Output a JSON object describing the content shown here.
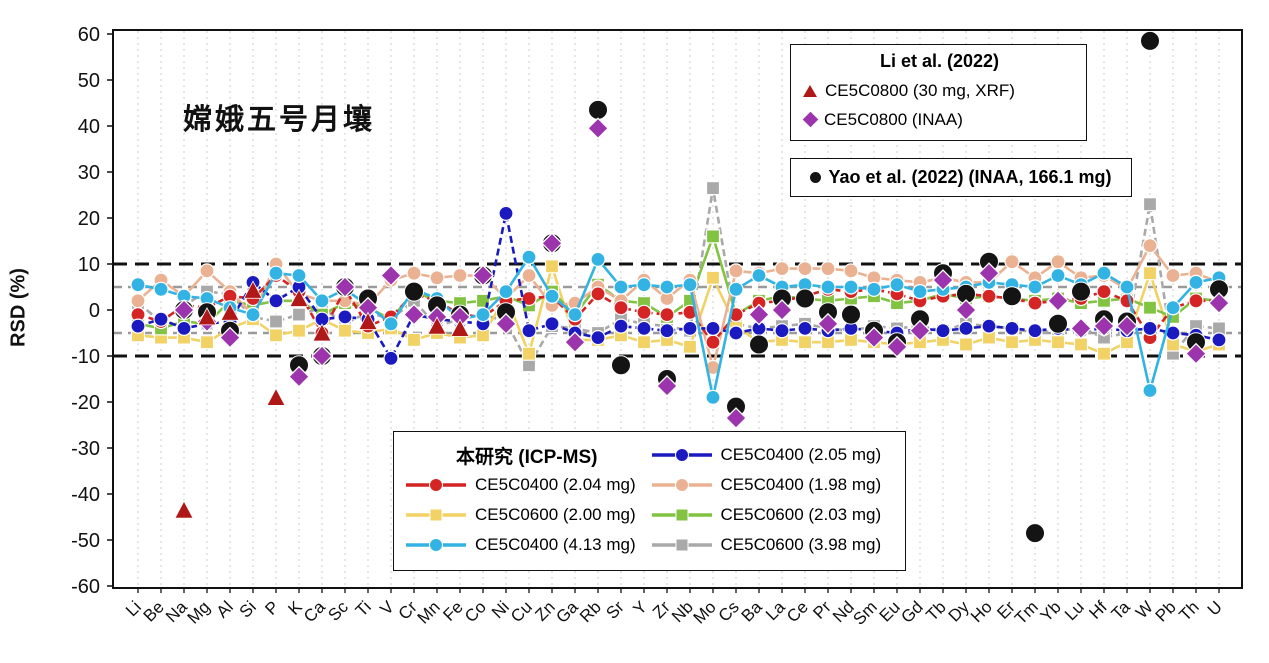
{
  "title": "嫦娥五号月壤",
  "chart_data": {
    "type": "line",
    "ylabel": "RSD (%)",
    "ylim": [
      -60,
      60
    ],
    "yticks": [
      60,
      50,
      40,
      30,
      20,
      10,
      0,
      -10,
      -20,
      -30,
      -40,
      -50,
      -60
    ],
    "grid": "vertical-dashed",
    "ref_lines": [
      {
        "value": 10,
        "color": "#111111",
        "width": 3,
        "dash": "14 8"
      },
      {
        "value": -10,
        "color": "#111111",
        "width": 3,
        "dash": "14 8"
      },
      {
        "value": 5,
        "color": "#9a9a9a",
        "width": 2.4,
        "dash": "9 6"
      },
      {
        "value": -5,
        "color": "#9a9a9a",
        "width": 2.4,
        "dash": "9 6"
      }
    ],
    "categories": [
      "Li",
      "Be",
      "Na",
      "Mg",
      "Al",
      "Si",
      "P",
      "K",
      "Ca",
      "Sc",
      "Ti",
      "V",
      "Cr",
      "Mn",
      "Fe",
      "Co",
      "Ni",
      "Cu",
      "Zn",
      "Ga",
      "Rb",
      "Sr",
      "Y",
      "Zr",
      "Nb",
      "Mo",
      "Cs",
      "Ba",
      "La",
      "Ce",
      "Pr",
      "Nd",
      "Sm",
      "Eu",
      "Gd",
      "Tb",
      "Dy",
      "Ho",
      "Er",
      "Tm",
      "Yb",
      "Lu",
      "Hf",
      "Ta",
      "W",
      "Pb",
      "Th",
      "U"
    ],
    "series": [
      {
        "name": "CE5C0600 (3.98 mg)",
        "group": "this-study",
        "marker": "square",
        "color": "#a9a9a9",
        "dash": "7 4",
        "values": [
          1.5,
          -2.5,
          1,
          4,
          3.5,
          -1.5,
          -2.5,
          -1,
          0.5,
          -3,
          -0.5,
          -2,
          2,
          -3.5,
          -2,
          -1,
          -2.5,
          -12,
          -3.5,
          -4,
          -5,
          -2,
          -3,
          -3.5,
          -4.5,
          26.5,
          -3,
          -4,
          -3.5,
          -3,
          -4,
          -4.5,
          -3.5,
          -4,
          -3.5,
          -4.5,
          -3,
          -3.5,
          -4,
          -5,
          -4.5,
          -4,
          -6,
          -5,
          23,
          -9.5,
          -3.5,
          -4
        ]
      },
      {
        "name": "CE5C0600 (2.00 mg)",
        "group": "this-study",
        "marker": "square",
        "color": "#f2d264",
        "dash": "",
        "values": [
          -5.5,
          -6,
          -6,
          -7,
          -4,
          -2,
          -5.5,
          -4.5,
          -2,
          -4.5,
          -5,
          -4,
          -6.5,
          -5,
          -6,
          -5.5,
          3,
          -9.5,
          9.5,
          -6.5,
          -6.5,
          -5.5,
          -7,
          -6.5,
          -8,
          7,
          -3.5,
          -7,
          -6.5,
          -7,
          -7,
          -6.5,
          -7,
          -7.5,
          -7,
          -6.5,
          -7.5,
          -6,
          -7,
          -6.5,
          -7,
          -7.5,
          -9.5,
          -7,
          8,
          -7.5,
          -9,
          -7.5
        ]
      },
      {
        "name": "CE5C0600 (2.03 mg)",
        "group": "this-study",
        "marker": "square",
        "color": "#82c341",
        "dash": "",
        "values": [
          -3,
          -4,
          -2.5,
          -3,
          2,
          1,
          2,
          2,
          -1,
          1.5,
          0.5,
          -2,
          4,
          2,
          1.5,
          2,
          3,
          1,
          4,
          -1,
          5.5,
          2,
          1.5,
          -1.5,
          2,
          16,
          -1,
          2,
          3,
          2.5,
          2,
          2.5,
          3,
          1.5,
          2,
          3.5,
          2.5,
          3,
          2.5,
          2,
          2.5,
          1.5,
          2,
          2.5,
          0.5,
          -1.5,
          2.5,
          2
        ]
      },
      {
        "name": "CE5C0400 (1.98 mg)",
        "group": "this-study",
        "marker": "circle",
        "color": "#eab292",
        "dash": "",
        "values": [
          2,
          6.5,
          3,
          8.5,
          4,
          -1,
          10,
          3.5,
          2,
          2,
          1,
          6.5,
          8,
          7,
          7.5,
          7.5,
          2.5,
          7.5,
          1,
          1.5,
          5,
          2,
          6.5,
          2.5,
          6.5,
          -12.5,
          8.5,
          8,
          9,
          9,
          9,
          8.5,
          7,
          6.5,
          6,
          7,
          6,
          6,
          10.5,
          7,
          10.5,
          7,
          7.5,
          4.5,
          14,
          7.5,
          8,
          6
        ]
      },
      {
        "name": "CE5C0400 (2.04 mg)",
        "group": "this-study",
        "marker": "circle",
        "color": "#d42424",
        "dash": "7 4",
        "values": [
          -1,
          -2.5,
          1,
          0.5,
          3,
          2.5,
          7.5,
          4,
          -5,
          4.5,
          -3.5,
          -1.5,
          3.5,
          2,
          -1,
          -1.5,
          2,
          2.5,
          3,
          -2,
          3.5,
          0.5,
          -0.5,
          -1,
          -0.5,
          -7,
          -1,
          1.5,
          2,
          3,
          4.5,
          4,
          4.5,
          3.5,
          2,
          3,
          3.5,
          3,
          2.5,
          1.5,
          2,
          2.5,
          4,
          2,
          -6,
          0.5,
          2,
          2
        ]
      },
      {
        "name": "CE5C0400 (2.05 mg)",
        "group": "this-study",
        "marker": "circle",
        "color": "#1a1ac0",
        "dash": "7 4",
        "values": [
          -3.5,
          -2,
          -4,
          -3,
          -2.5,
          6,
          2,
          5,
          -2,
          -1.5,
          -2,
          -10.5,
          -1,
          -2,
          -2.5,
          -3,
          21,
          -4.5,
          -3,
          -5,
          -6,
          -3.5,
          -4,
          -4.5,
          -4,
          -4,
          -5,
          -4,
          -4.5,
          -4,
          -4.5,
          -4,
          -4.5,
          -5,
          -4,
          -4.5,
          -4,
          -3.5,
          -4,
          -4.5,
          -4,
          -4.5,
          -4,
          -4.5,
          -4,
          -5,
          -5.5,
          -6.5
        ]
      },
      {
        "name": "CE5C0400 (4.13 mg)",
        "group": "this-study",
        "marker": "circle",
        "color": "#33b3e3",
        "dash": "",
        "values": [
          5.5,
          4.5,
          3,
          2.5,
          0.5,
          -1,
          8,
          7.5,
          2,
          4.5,
          1,
          -3,
          4.5,
          2.5,
          -2,
          -1,
          4,
          11.5,
          3,
          -1,
          11,
          5,
          5.5,
          5,
          5.5,
          -19,
          4.5,
          7.5,
          5,
          5.5,
          5,
          5,
          4.5,
          5.5,
          4,
          4.5,
          5,
          6,
          5.5,
          5,
          7.5,
          5.5,
          8,
          5,
          -17.5,
          0.5,
          6,
          7
        ]
      },
      {
        "name": "Yao et al. (2022) (INAA, 166.1 mg)",
        "group": "literature",
        "marker": "bigdot",
        "color": "#141414",
        "dash": null,
        "values": [
          null,
          null,
          0,
          -0.5,
          -4.5,
          null,
          null,
          -12,
          -10,
          5,
          2.5,
          null,
          4,
          1,
          -1,
          7.5,
          -0.5,
          null,
          14.5,
          null,
          43.5,
          -12,
          null,
          -15,
          null,
          null,
          -21,
          -7.5,
          2.5,
          2.5,
          -0.5,
          -1,
          -4.5,
          -7,
          -2,
          8,
          3.5,
          10.5,
          3,
          -48.5,
          -3,
          4,
          -2,
          -2.5,
          58.5,
          null,
          -7,
          4.5
        ]
      },
      {
        "name": "CE5C0800 (INAA)",
        "group": "literature",
        "marker": "diamond",
        "color": "#9c34ad",
        "dash": null,
        "values": [
          null,
          null,
          0,
          -2.5,
          -6,
          null,
          null,
          -14.5,
          -10,
          5,
          0.5,
          7.5,
          -1,
          -1.5,
          -1.5,
          7.5,
          -3,
          null,
          14.5,
          -7,
          39.5,
          null,
          null,
          -16.5,
          null,
          null,
          -23.5,
          -1,
          0,
          null,
          -3,
          null,
          -6,
          -8,
          -4.5,
          6.5,
          0,
          8,
          null,
          null,
          2,
          -4,
          -3.5,
          -3.5,
          null,
          null,
          -9.5,
          1.5
        ]
      },
      {
        "name": "CE5C0800 (30 mg, XRF)",
        "group": "literature",
        "marker": "triangle",
        "color": "#b01818",
        "dash": null,
        "values": [
          null,
          null,
          -43.5,
          -1.5,
          -0.5,
          4.3,
          -19,
          2.5,
          -5,
          null,
          -2.5,
          null,
          null,
          -3.5,
          -4,
          null,
          null,
          null,
          null,
          null,
          null,
          null,
          null,
          null,
          null,
          null,
          null,
          null,
          null,
          null,
          null,
          null,
          null,
          null,
          null,
          null,
          null,
          null,
          null,
          null,
          null,
          null,
          null,
          null,
          null,
          null,
          null,
          null
        ]
      }
    ]
  },
  "legends": {
    "li": {
      "header": "Li et al. (2022)",
      "items": [
        {
          "marker": "triangle",
          "color": "#b01818",
          "label": "CE5C0800 (30 mg, XRF)"
        },
        {
          "marker": "diamond",
          "color": "#9c34ad",
          "label": "CE5C0800 (INAA)"
        }
      ]
    },
    "yao": {
      "marker_color": "#141414",
      "label": "Yao et al. (2022) (INAA, 166.1 mg)"
    },
    "main": {
      "header": "本研究 (ICP-MS)",
      "items": [
        {
          "marker": "circle",
          "color": "#1a1ac0",
          "label": "CE5C0400 (2.05 mg)"
        },
        {
          "marker": "circle",
          "color": "#d42424",
          "label": "CE5C0400 (2.04 mg)"
        },
        {
          "marker": "circle",
          "color": "#eab292",
          "label": "CE5C0400 (1.98 mg)"
        },
        {
          "marker": "square",
          "color": "#f2d264",
          "label": "CE5C0600 (2.00 mg)"
        },
        {
          "marker": "square",
          "color": "#82c341",
          "label": "CE5C0600 (2.03 mg)"
        },
        {
          "marker": "circle",
          "color": "#33b3e3",
          "label": "CE5C0400 (4.13 mg)"
        },
        {
          "marker": "square",
          "color": "#a9a9a9",
          "label": "CE5C0600 (3.98 mg)"
        }
      ]
    }
  }
}
